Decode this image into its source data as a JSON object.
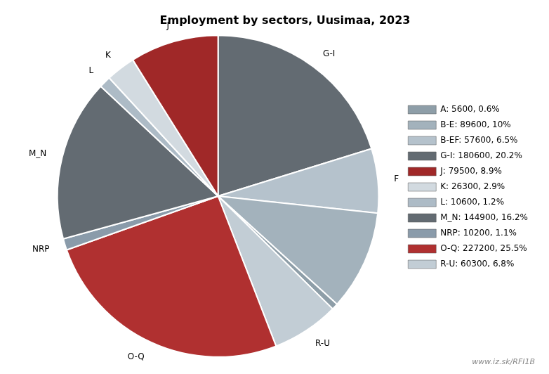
{
  "chart_data": {
    "type": "pie",
    "title": "Employment by sectors, Uusimaa, 2023",
    "categories": [
      "G-I",
      "F",
      null,
      null,
      "R-U",
      "O-Q",
      "NRP",
      "M_N",
      "L",
      "K",
      "J"
    ],
    "values": [
      180600,
      57600,
      89600,
      5600,
      60300,
      227200,
      10200,
      144900,
      10600,
      26300,
      79500
    ],
    "colors": [
      "#636b72",
      "#b5c2cc",
      "#a3b2bc",
      "#8e9ea8",
      "#c2cdd5",
      "#b03030",
      "#8a9baa",
      "#636b72",
      "#adbbc6",
      "#d2dae0",
      "#a02828"
    ],
    "legend": "right",
    "legend_entries": [
      {
        "label": "A: 5600, 0.6%",
        "color": "#8e9ea8"
      },
      {
        "label": "B-E: 89600, 10%",
        "color": "#a3b2bc"
      },
      {
        "label": "B-EF: 57600, 6.5%",
        "color": "#b5c2cc"
      },
      {
        "label": "G-I: 180600, 20.2%",
        "color": "#636b72"
      },
      {
        "label": "J: 79500, 8.9%",
        "color": "#a02828"
      },
      {
        "label": "K: 26300, 2.9%",
        "color": "#d2dae0"
      },
      {
        "label": "L: 10600, 1.2%",
        "color": "#adbbc6"
      },
      {
        "label": "M_N: 144900, 16.2%",
        "color": "#636b72"
      },
      {
        "label": "NRP: 10200, 1.1%",
        "color": "#8a9baa"
      },
      {
        "label": "O-Q: 227200, 25.5%",
        "color": "#b03030"
      },
      {
        "label": "R-U: 60300, 6.8%",
        "color": "#c2cdd5"
      }
    ],
    "annotations": [
      "www.iz.sk/RFI1B"
    ]
  }
}
